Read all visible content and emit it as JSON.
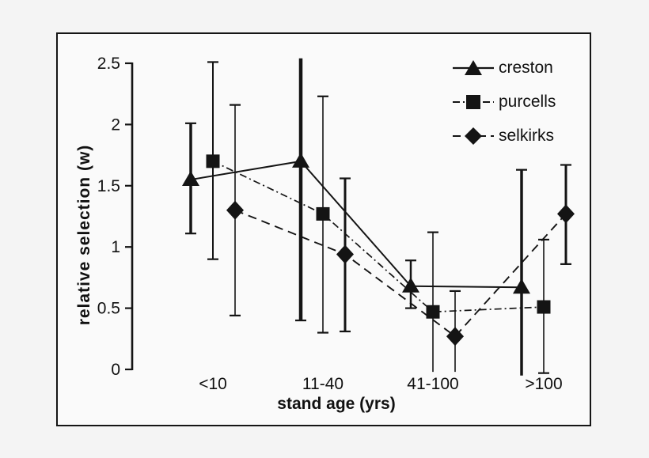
{
  "figure": {
    "background_color": "#f4f4f4",
    "panel_color": "#fafafa",
    "border_color": "#151515",
    "ink_color": "#141414"
  },
  "chart_data": {
    "type": "line",
    "title": "",
    "xlabel": "stand age (yrs)",
    "ylabel": "relative selection (w)",
    "categories": [
      "<10",
      "11-40",
      "41-100",
      ">100"
    ],
    "y_ticks": [
      0,
      0.5,
      1,
      1.5,
      2,
      2.5
    ],
    "y_tick_labels": [
      "0",
      "0.5",
      "1",
      "1.5",
      "2",
      "2.5"
    ],
    "ylim": [
      0,
      2.5
    ],
    "grid": false,
    "legend_position": "top-right-inside",
    "series": [
      {
        "name": "creston",
        "marker": "triangle",
        "line_style": "solid",
        "values": [
          1.55,
          1.7,
          0.68,
          0.67
        ],
        "err_low": [
          1.11,
          0.4,
          0.5,
          -0.05
        ],
        "err_high": [
          2.01,
          2.54,
          0.89,
          1.63
        ],
        "cap_low": [
          true,
          true,
          true,
          false
        ],
        "cap_high": [
          true,
          false,
          true,
          true
        ],
        "err_widths": [
          3.5,
          4.5,
          2.5,
          3.5
        ]
      },
      {
        "name": "purcells",
        "marker": "square",
        "line_style": "dashdot",
        "values": [
          1.7,
          1.27,
          0.47,
          0.51
        ],
        "err_low": [
          0.9,
          0.3,
          -0.02,
          -0.03
        ],
        "err_high": [
          2.51,
          2.23,
          1.12,
          1.06
        ],
        "cap_low": [
          true,
          true,
          false,
          true
        ],
        "cap_high": [
          true,
          true,
          true,
          true
        ],
        "err_widths": [
          2,
          1.6,
          1.6,
          1.6
        ]
      },
      {
        "name": "selkirks",
        "marker": "diamond",
        "line_style": "dashed",
        "values": [
          1.3,
          0.94,
          0.27,
          1.27
        ],
        "err_low": [
          0.44,
          0.31,
          -0.02,
          0.86
        ],
        "err_high": [
          2.16,
          1.56,
          0.64,
          1.67
        ],
        "cap_low": [
          true,
          true,
          false,
          true
        ],
        "cap_high": [
          true,
          true,
          true,
          true
        ],
        "err_widths": [
          1.6,
          3,
          1.6,
          3
        ]
      }
    ]
  }
}
